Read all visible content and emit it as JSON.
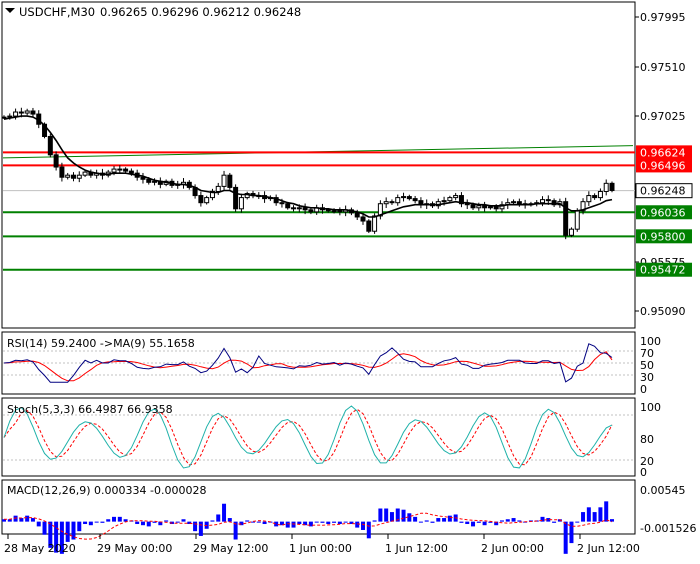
{
  "header": {
    "symbol": "USDCHF,M30",
    "ohlc": "0.96265 0.96296 0.96212 0.96248"
  },
  "colors": {
    "background": "#ffffff",
    "frame": "#000000",
    "grid": "#c0c0c0",
    "candle": "#000000",
    "ma": "#000000",
    "trendline": "#008000",
    "resistance": "#ff0000",
    "support": "#008000",
    "rsi_line": "#000080",
    "rsi_ma": "#ff0000",
    "stoch_main": "#20b2aa",
    "stoch_signal": "#ff0000",
    "macd_hist": "#0000ff",
    "macd_signal": "#ff0000",
    "price_label_bg": "#ffffff"
  },
  "price_axis": [
    "0.97995",
    "0.97510",
    "0.97025",
    "0.95575",
    "0.95090"
  ],
  "levels": [
    {
      "value": 0.96624,
      "label": "0.96624",
      "kind": "resistance"
    },
    {
      "value": 0.96496,
      "label": "0.96496",
      "kind": "resistance"
    },
    {
      "value": 0.96036,
      "label": "0.96036",
      "kind": "support"
    },
    {
      "value": 0.958,
      "label": "0.95800",
      "kind": "support"
    },
    {
      "value": 0.95472,
      "label": "0.95472",
      "kind": "support"
    }
  ],
  "current_price": {
    "value": 0.96248,
    "label": "0.96248"
  },
  "time_axis": [
    "28 May 2020",
    "29 May 00:00",
    "29 May 12:00",
    "1 Jun 00:00",
    "1 Jun 12:00",
    "2 Jun 00:00",
    "2 Jun 12:00"
  ],
  "indicators": {
    "rsi": {
      "label": "RSI(14) 59.2400  ->MA(9) 55.1658",
      "ticks": [
        "100",
        "70",
        "50",
        "30",
        "0"
      ]
    },
    "stoch": {
      "label": "Stoch(5,3,3) 66.4987 66.9358",
      "ticks": [
        "100",
        "80",
        "20",
        "0"
      ]
    },
    "macd": {
      "label": "MACD(12,26,9) 0.000334 -0.000028",
      "ticks": [
        "0.00545",
        "-0.001526"
      ]
    }
  },
  "chart_data": {
    "type": "candlestick",
    "symbol": "USDCHF",
    "timeframe": "M30",
    "ylim": [
      0.949,
      0.981
    ],
    "x_labels": [
      "28 May 2020",
      "29 May 00:00",
      "29 May 12:00",
      "1 Jun 00:00",
      "1 Jun 12:00",
      "2 Jun 00:00",
      "2 Jun 12:00"
    ],
    "last": {
      "open": 0.96265,
      "high": 0.96296,
      "low": 0.96212,
      "close": 0.96248
    },
    "close_path": [
      0.9697,
      0.9698,
      0.9702,
      0.9701,
      0.9703,
      0.97,
      0.969,
      0.9678,
      0.966,
      0.9648,
      0.9638,
      0.964,
      0.9637,
      0.964,
      0.9643,
      0.964,
      0.9642,
      0.964,
      0.9643,
      0.9646,
      0.9646,
      0.9644,
      0.9642,
      0.9638,
      0.9636,
      0.9633,
      0.9634,
      0.9631,
      0.9634,
      0.963,
      0.9631,
      0.9633,
      0.9628,
      0.962,
      0.9613,
      0.9618,
      0.9624,
      0.9629,
      0.964,
      0.9628,
      0.9607,
      0.9618,
      0.9622,
      0.962,
      0.962,
      0.9617,
      0.9618,
      0.9613,
      0.9612,
      0.9608,
      0.9607,
      0.9608,
      0.9606,
      0.9604,
      0.9608,
      0.9606,
      0.9605,
      0.9605,
      0.9604,
      0.9606,
      0.9603,
      0.9599,
      0.9595,
      0.9585,
      0.96,
      0.9612,
      0.9614,
      0.9613,
      0.9618,
      0.9619,
      0.9617,
      0.9615,
      0.9611,
      0.9612,
      0.961,
      0.9614,
      0.9615,
      0.9618,
      0.962,
      0.9612,
      0.9611,
      0.9608,
      0.961,
      0.9608,
      0.9609,
      0.9607,
      0.9611,
      0.9613,
      0.9614,
      0.9612,
      0.9611,
      0.9612,
      0.9613,
      0.9616,
      0.9615,
      0.9611,
      0.9614,
      0.9581,
      0.9587,
      0.9605,
      0.9614,
      0.962,
      0.9618,
      0.9624,
      0.9632,
      0.9625
    ],
    "ma_path": [
      0.9695,
      0.9696,
      0.9697,
      0.9698,
      0.9698,
      0.9697,
      0.9694,
      0.9689,
      0.9682,
      0.9674,
      0.9665,
      0.9657,
      0.9652,
      0.9648,
      0.9645,
      0.9643,
      0.9642,
      0.9641,
      0.9641,
      0.9642,
      0.9642,
      0.9642,
      0.9641,
      0.964,
      0.9639,
      0.9637,
      0.9635,
      0.9634,
      0.9633,
      0.9632,
      0.9631,
      0.9631,
      0.963,
      0.9628,
      0.9625,
      0.9624,
      0.9623,
      0.9623,
      0.9625,
      0.9625,
      0.9622,
      0.9621,
      0.9621,
      0.962,
      0.962,
      0.9619,
      0.9618,
      0.9617,
      0.9615,
      0.9613,
      0.9612,
      0.961,
      0.9609,
      0.9608,
      0.9608,
      0.9607,
      0.9607,
      0.9606,
      0.9606,
      0.9606,
      0.9605,
      0.9604,
      0.9602,
      0.9599,
      0.9599,
      0.9601,
      0.9603,
      0.9605,
      0.9607,
      0.9609,
      0.961,
      0.9611,
      0.9611,
      0.9611,
      0.9611,
      0.9611,
      0.9612,
      0.9613,
      0.9614,
      0.9613,
      0.9613,
      0.9612,
      0.9611,
      0.9611,
      0.961,
      0.961,
      0.961,
      0.9611,
      0.9611,
      0.9611,
      0.9611,
      0.9611,
      0.9612,
      0.9612,
      0.9612,
      0.9612,
      0.9612,
      0.9608,
      0.9605,
      0.9605,
      0.9606,
      0.9608,
      0.961,
      0.9612,
      0.9615,
      0.9616
    ],
    "trendline": {
      "start": 0.9657,
      "end": 0.9669
    },
    "levels": [
      0.96624,
      0.96496,
      0.96036,
      0.958,
      0.95472
    ],
    "rsi": {
      "period": 14,
      "value": 59.24,
      "ma_period": 9,
      "ma_value": 55.1658,
      "ylim": [
        0,
        100
      ],
      "levels": [
        70,
        50,
        30
      ]
    },
    "stoch": {
      "params": "5,3,3",
      "k": 66.4987,
      "d": 66.9358,
      "ylim": [
        0,
        100
      ],
      "levels": [
        80,
        20
      ]
    },
    "macd": {
      "params": "12,26,9",
      "macd": 0.000334,
      "signal": -2.8e-05,
      "ylim": [
        -0.001526,
        0.00545
      ]
    }
  }
}
